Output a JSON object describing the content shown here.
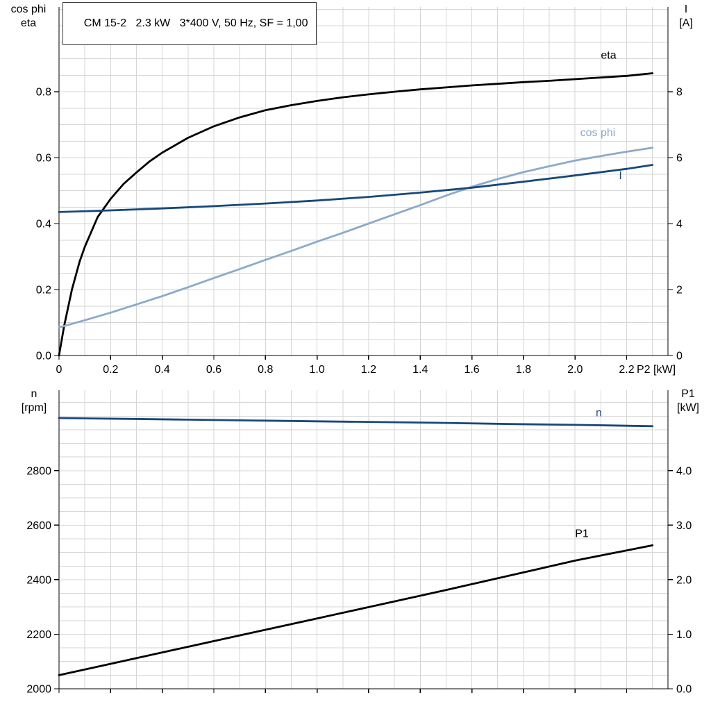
{
  "title": "CM 15-2   2.3 kW   3*400 V, 50 Hz, SF = 1,00",
  "colors": {
    "grid": "#d6d6d6",
    "axis": "#000000"
  },
  "chart_data": [
    {
      "id": "top",
      "type": "line",
      "x_axis": {
        "label": "P2 [kW]",
        "range": [
          0,
          2.36
        ],
        "grid_step": 0.1,
        "ticks": [
          0,
          0.2,
          0.4,
          0.6,
          0.8,
          1.0,
          1.2,
          1.4,
          1.6,
          1.8,
          2.0,
          2.2
        ],
        "tick_labels": [
          "0",
          "0.2",
          "0.4",
          "0.6",
          "0.8",
          "1.0",
          "1.2",
          "1.4",
          "1.6",
          "1.8",
          "2.0",
          "2.2"
        ]
      },
      "left_axis": {
        "title_lines": [
          "cos phi",
          "eta"
        ],
        "range": [
          0,
          1.057
        ],
        "grid_step": 0.05,
        "ticks": [
          0.0,
          0.2,
          0.4,
          0.6,
          0.8
        ],
        "tick_labels": [
          "0.0",
          "0.2",
          "0.4",
          "0.6",
          "0.8"
        ]
      },
      "right_axis": {
        "title_lines": [
          "I",
          "[A]"
        ],
        "range": [
          0,
          10.57
        ],
        "ticks": [
          0,
          2,
          4,
          6,
          8
        ],
        "tick_labels": [
          "0",
          "2",
          "4",
          "6",
          "8"
        ]
      },
      "series": [
        {
          "name": "eta",
          "label": "eta",
          "axis": "left",
          "color": "#000000",
          "label_x": 2.1,
          "label_y": 0.9,
          "x": [
            0,
            0.02,
            0.05,
            0.08,
            0.1,
            0.15,
            0.2,
            0.25,
            0.3,
            0.35,
            0.4,
            0.5,
            0.6,
            0.7,
            0.8,
            0.9,
            1.0,
            1.1,
            1.2,
            1.3,
            1.4,
            1.5,
            1.6,
            1.7,
            1.8,
            1.9,
            2.0,
            2.1,
            2.2,
            2.3
          ],
          "y": [
            0,
            0.09,
            0.2,
            0.285,
            0.33,
            0.42,
            0.475,
            0.52,
            0.555,
            0.588,
            0.615,
            0.66,
            0.695,
            0.722,
            0.744,
            0.759,
            0.772,
            0.783,
            0.792,
            0.8,
            0.807,
            0.813,
            0.819,
            0.824,
            0.829,
            0.833,
            0.838,
            0.843,
            0.848,
            0.856
          ]
        },
        {
          "name": "cos phi",
          "label": "cos phi",
          "axis": "left",
          "color": "#8ca9cb",
          "label_x": 2.02,
          "label_y": 0.665,
          "x": [
            0,
            0.1,
            0.2,
            0.3,
            0.4,
            0.5,
            0.6,
            0.7,
            0.8,
            0.9,
            1.0,
            1.1,
            1.2,
            1.3,
            1.4,
            1.5,
            1.6,
            1.7,
            1.8,
            1.9,
            2.0,
            2.1,
            2.2,
            2.3
          ],
          "y": [
            0.085,
            0.107,
            0.13,
            0.155,
            0.18,
            0.207,
            0.235,
            0.262,
            0.29,
            0.317,
            0.345,
            0.372,
            0.4,
            0.428,
            0.456,
            0.485,
            0.512,
            0.535,
            0.556,
            0.574,
            0.591,
            0.605,
            0.618,
            0.63
          ]
        },
        {
          "name": "I",
          "label": "I",
          "axis": "right",
          "color": "#17487b",
          "label_x": 2.17,
          "label_y": 5.35,
          "x": [
            0,
            0.2,
            0.4,
            0.6,
            0.8,
            1.0,
            1.2,
            1.4,
            1.6,
            1.8,
            2.0,
            2.2,
            2.3
          ],
          "y": [
            4.35,
            4.4,
            4.46,
            4.53,
            4.61,
            4.7,
            4.81,
            4.94,
            5.09,
            5.27,
            5.46,
            5.66,
            5.78
          ]
        }
      ]
    },
    {
      "id": "bottom",
      "type": "line",
      "x_axis": {
        "label": "",
        "range": [
          0,
          2.36
        ],
        "grid_step": 0.1,
        "ticks": [
          0,
          0.2,
          0.4,
          0.6,
          0.8,
          1.0,
          1.2,
          1.4,
          1.6,
          1.8,
          2.0,
          2.2
        ],
        "tick_labels": []
      },
      "left_axis": {
        "title_lines": [
          "n",
          "[rpm]"
        ],
        "range": [
          2000,
          3095
        ],
        "grid_step": 50,
        "ticks": [
          2000,
          2200,
          2400,
          2600,
          2800
        ],
        "tick_labels": [
          "2000",
          "2200",
          "2400",
          "2600",
          "2800"
        ]
      },
      "right_axis": {
        "title_lines": [
          "P1",
          "[kW]"
        ],
        "range": [
          0,
          5.475
        ],
        "ticks": [
          0,
          1,
          2,
          3,
          4
        ],
        "tick_labels": [
          "0.0",
          "1.0",
          "2.0",
          "3.0",
          "4.0"
        ]
      },
      "series": [
        {
          "name": "n",
          "label": "n",
          "axis": "left",
          "color": "#17487b",
          "label_x": 2.08,
          "label_y": 3000,
          "x": [
            0,
            0.25,
            0.5,
            0.75,
            1.0,
            1.25,
            1.5,
            1.75,
            2.0,
            2.3
          ],
          "y": [
            2993,
            2990,
            2987,
            2984,
            2981,
            2978,
            2975,
            2971,
            2968,
            2963
          ]
        },
        {
          "name": "P1",
          "label": "P1",
          "axis": "right",
          "color": "#000000",
          "label_x": 2.0,
          "label_y": 2.78,
          "x": [
            0,
            0.5,
            1.0,
            1.5,
            2.0,
            2.3
          ],
          "y": [
            0.25,
            0.77,
            1.29,
            1.81,
            2.35,
            2.63
          ]
        }
      ]
    }
  ]
}
